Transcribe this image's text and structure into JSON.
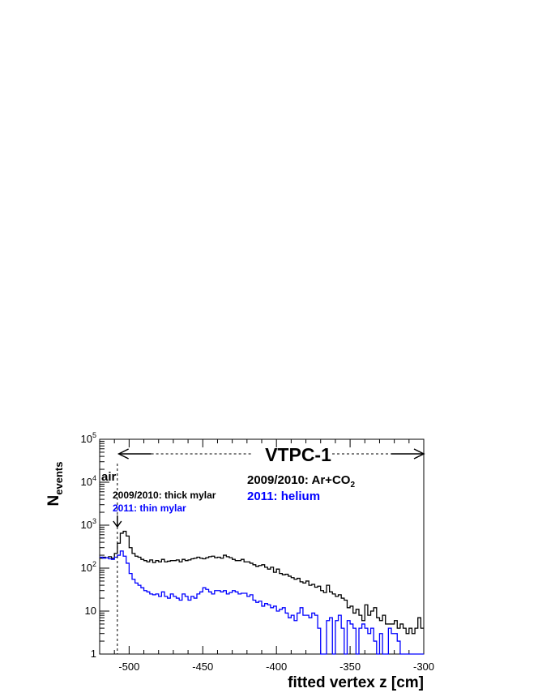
{
  "chart_data": {
    "type": "step",
    "title": "",
    "xlabel": "fitted vertex z [cm]",
    "ylabel": {
      "main": "N",
      "sub": "events"
    },
    "xlim": [
      -520,
      -300
    ],
    "ylim": [
      1,
      100000
    ],
    "yscale": "log",
    "x_ticks": [
      "-500",
      "-450",
      "-400",
      "-350",
      "-300"
    ],
    "y_ticks": [
      {
        "base": "1",
        "exp": ""
      },
      {
        "base": "10",
        "exp": ""
      },
      {
        "base": "10",
        "exp": "2"
      },
      {
        "base": "10",
        "exp": "3"
      },
      {
        "base": "10",
        "exp": "4"
      },
      {
        "base": "10",
        "exp": "5"
      }
    ],
    "bin_width": 2,
    "series": [
      {
        "name": "2009/2010",
        "color": "#000000",
        "values": [
          170,
          180,
          175,
          185,
          170,
          220,
          380,
          650,
          720,
          560,
          300,
          220,
          190,
          180,
          160,
          150,
          140,
          155,
          135,
          150,
          140,
          160,
          140,
          145,
          150,
          150,
          155,
          140,
          160,
          150,
          155,
          165,
          170,
          180,
          170,
          165,
          175,
          185,
          190,
          175,
          180,
          170,
          200,
          185,
          175,
          160,
          150,
          150,
          160,
          140,
          140,
          130,
          120,
          110,
          115,
          120,
          105,
          95,
          105,
          80,
          95,
          75,
          70,
          72,
          65,
          60,
          55,
          58,
          48,
          45,
          50,
          40,
          42,
          36,
          38,
          30,
          27,
          40,
          28,
          25,
          22,
          24,
          20,
          18,
          12,
          13,
          9,
          11,
          8,
          6,
          14,
          8,
          10,
          12,
          7,
          6,
          8,
          5,
          5,
          5,
          6,
          4,
          5,
          4,
          3,
          4,
          3,
          4,
          7,
          4
        ]
      },
      {
        "name": "2011",
        "color": "#0000ff",
        "values": [
          180,
          170,
          175,
          165,
          160,
          180,
          200,
          250,
          190,
          130,
          75,
          55,
          45,
          40,
          35,
          30,
          28,
          25,
          24,
          25,
          22,
          28,
          22,
          20,
          25,
          22,
          20,
          18,
          25,
          22,
          18,
          22,
          20,
          25,
          28,
          35,
          32,
          28,
          25,
          30,
          30,
          28,
          30,
          25,
          27,
          30,
          28,
          25,
          26,
          26,
          22,
          24,
          18,
          16,
          17,
          13,
          15,
          14,
          12,
          13,
          10,
          11,
          12,
          9,
          7,
          8,
          6,
          9,
          12,
          8,
          8,
          7,
          9,
          8,
          4,
          1,
          1,
          6,
          7,
          1,
          6,
          8,
          4,
          1,
          6,
          5,
          4,
          1,
          4,
          5,
          4,
          3,
          4,
          2,
          1,
          3,
          1,
          1,
          4,
          3,
          3,
          2,
          1,
          1,
          1,
          1,
          1,
          1,
          1,
          1
        ]
      }
    ],
    "annotations": {
      "vtpc_label": "VTPC-1",
      "air_label": "air",
      "gas_old": "2009/2010: Ar+CO",
      "gas_old_sub": "2",
      "gas_new": "2011: helium",
      "mylar_old": "2009/2010: thick mylar",
      "mylar_new": "2011: thin mylar",
      "peak_marker_z": -508,
      "vtpc_start_z": -507,
      "vtpc_end_z": -300
    }
  }
}
